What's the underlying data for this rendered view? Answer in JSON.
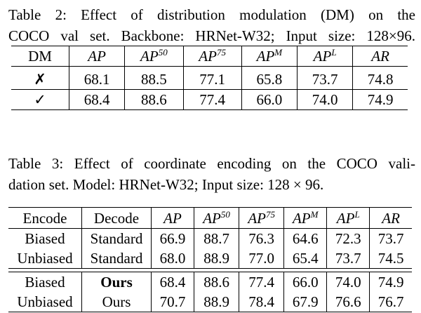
{
  "table2": {
    "caption_lines": [
      "Table 2:  Effect of distribution modulation (DM) on the",
      "COCO val set. Backbone: HRNet-W32; Input size: 128×96."
    ],
    "headers": {
      "dm": "DM",
      "cols": [
        {
          "base": "AP",
          "sup": ""
        },
        {
          "base": "AP",
          "sup": "50"
        },
        {
          "base": "AP",
          "sup": "75"
        },
        {
          "base": "AP",
          "sup": "M"
        },
        {
          "base": "AP",
          "sup": "L"
        },
        {
          "base": "AR",
          "sup": ""
        }
      ]
    },
    "rows": [
      {
        "dm": "✗",
        "values": [
          "68.1",
          "88.5",
          "77.1",
          "65.8",
          "73.7",
          "74.8"
        ],
        "bold": false
      },
      {
        "dm": "✓",
        "values": [
          "68.4",
          "88.6",
          "77.4",
          "66.0",
          "74.0",
          "74.9"
        ],
        "bold": true
      }
    ]
  },
  "table3": {
    "caption_lines": [
      "Table 3:  Effect of coordinate encoding on the COCO vali-",
      "dation set. Model: HRNet-W32; Input size: 128 × 96."
    ],
    "headers": {
      "encode": "Encode",
      "decode": "Decode",
      "cols": [
        {
          "base": "AP",
          "sup": ""
        },
        {
          "base": "AP",
          "sup": "50"
        },
        {
          "base": "AP",
          "sup": "75"
        },
        {
          "base": "AP",
          "sup": "M"
        },
        {
          "base": "AP",
          "sup": "L"
        },
        {
          "base": "AR",
          "sup": ""
        }
      ]
    },
    "rows": [
      {
        "encode": "Biased",
        "decode": "Standard",
        "values": [
          "66.9",
          "88.7",
          "76.3",
          "64.6",
          "72.3",
          "73.7"
        ]
      },
      {
        "encode": "Unbiased",
        "decode": "Standard",
        "values": [
          "68.0",
          "88.9",
          "77.0",
          "65.4",
          "73.7",
          "74.5"
        ]
      },
      {
        "encode": "Biased",
        "decode": "Ours",
        "values": [
          "68.4",
          "88.6",
          "77.4",
          "66.0",
          "74.0",
          "74.9"
        ]
      },
      {
        "encode": "Unbiased",
        "decode": "Ours",
        "values": [
          "70.7",
          "88.9",
          "78.4",
          "67.9",
          "76.6",
          "76.7"
        ]
      }
    ]
  }
}
